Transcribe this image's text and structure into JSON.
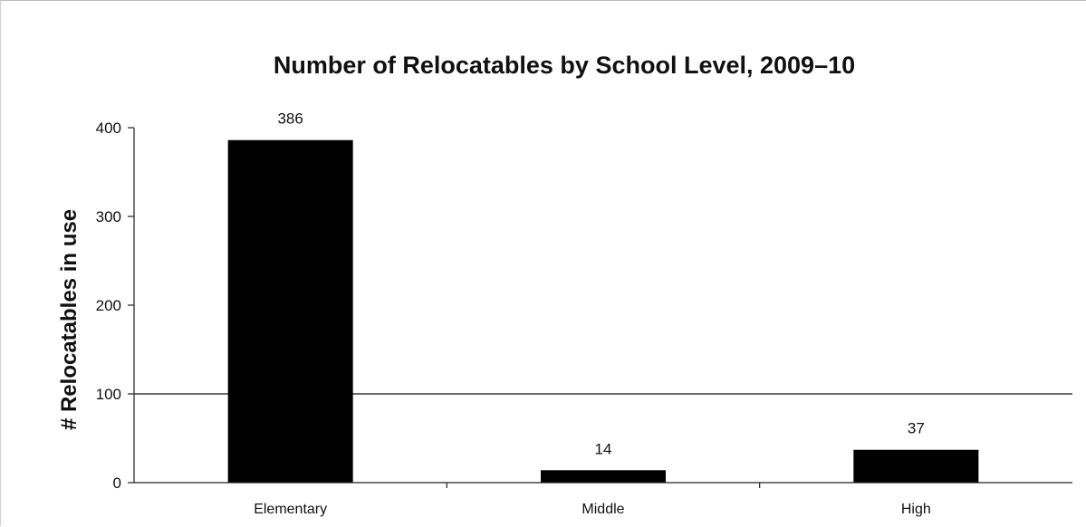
{
  "chart_data": {
    "type": "bar",
    "title": "Number of Relocatables by School Level, 2009–10",
    "xlabel": "",
    "ylabel": "# Relocatables in use",
    "categories": [
      "Elementary",
      "Middle",
      "High"
    ],
    "values": [
      386,
      14,
      37
    ],
    "data_labels": [
      "386",
      "14",
      "37"
    ],
    "ylim": [
      0,
      400
    ],
    "yticks": [
      0,
      100,
      200,
      300,
      400
    ],
    "ytick_labels": [
      "0",
      "100",
      "200",
      "300",
      "400"
    ],
    "gridlines": [
      100
    ],
    "legend": "none",
    "bar_color": "#000000"
  }
}
